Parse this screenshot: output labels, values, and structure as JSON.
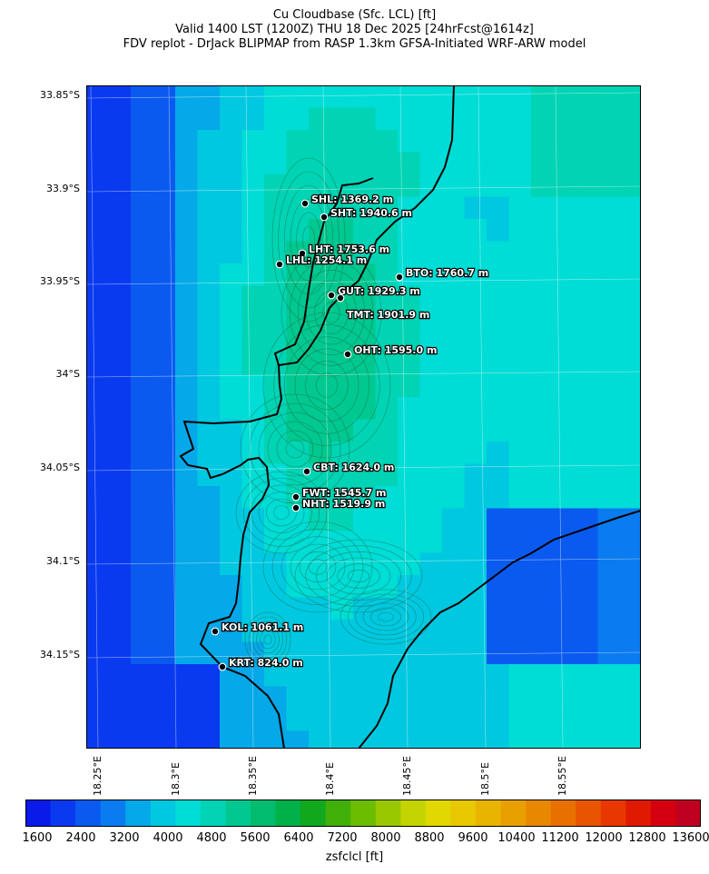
{
  "title": {
    "line1": "Cu Cloudbase (Sfc. LCL) [ft]",
    "line2": "Valid 1400 LST (1200Z) THU 18 Dec 2025 [24hrFcst@1614z]",
    "line3": "FDV replot - DrJack BLIPMAP from RASP 1.3km GFSA-Initiated WRF-ARW model"
  },
  "map": {
    "lat_ticks": [
      "33.85°S",
      "33.9°S",
      "33.95°S",
      "34°S",
      "34.05°S",
      "34.1°S",
      "34.15°S"
    ],
    "lon_ticks": [
      "18.25°E",
      "18.3°E",
      "18.35°E",
      "18.4°E",
      "18.45°E",
      "18.5°E",
      "18.55°E"
    ],
    "stations": [
      {
        "code": "SHL",
        "label": "SHL: 1369.2 m"
      },
      {
        "code": "SHT",
        "label": "SHT: 1940.6 m"
      },
      {
        "code": "LHT",
        "label": "LHT: 1753.6 m"
      },
      {
        "code": "LHL",
        "label": "LHL: 1254.1 m"
      },
      {
        "code": "BTO",
        "label": "BTO: 1760.7 m"
      },
      {
        "code": "GUT",
        "label": "GUT: 1929.3 m"
      },
      {
        "code": "TMT",
        "label": "TMT: 1901.9 m"
      },
      {
        "code": "OHT",
        "label": "OHT: 1595.0 m"
      },
      {
        "code": "CBT",
        "label": "CBT: 1624.0 m"
      },
      {
        "code": "FWT",
        "label": "FWT: 1545.7 m"
      },
      {
        "code": "NHT",
        "label": "NHT: 1519.9 m"
      },
      {
        "code": "KOL",
        "label": "KOL: 1061.1 m"
      },
      {
        "code": "KRT",
        "label": "KRT: 824.0 m"
      }
    ]
  },
  "colorbar": {
    "title": "zsfclcl [ft]",
    "tick_labels": [
      "1600",
      "2400",
      "3200",
      "4000",
      "4800",
      "5600",
      "6400",
      "7200",
      "8000",
      "8800",
      "9600",
      "10400",
      "11200",
      "12000",
      "12800",
      "13600"
    ],
    "colors": [
      "#0a1ae8",
      "#0a3af0",
      "#0a5af0",
      "#0a7cf0",
      "#05a8e8",
      "#00c8e0",
      "#00dcd6",
      "#00d4b4",
      "#00c890",
      "#00bc6c",
      "#00b048",
      "#12a81e",
      "#40b008",
      "#6cbc00",
      "#98c800",
      "#c4d400",
      "#e0d800",
      "#e8c800",
      "#e8b400",
      "#e8a000",
      "#e88800",
      "#e87000",
      "#e85400",
      "#e83800",
      "#e01a00",
      "#d40010",
      "#c00020"
    ]
  }
}
